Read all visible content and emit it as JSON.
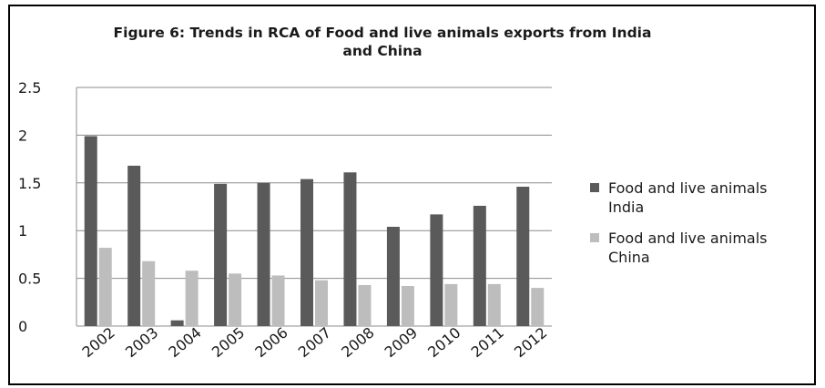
{
  "chart_data": {
    "type": "bar",
    "title_line1": "Figure 6: Trends in RCA of Food and live animals exports from India",
    "title_line2": "and China",
    "categories": [
      "2002",
      "2003",
      "2004",
      "2005",
      "2006",
      "2007",
      "2008",
      "2009",
      "2010",
      "2011",
      "2012"
    ],
    "series": [
      {
        "name": "Food and live animals India",
        "name_line1": "Food and live animals",
        "name_line2": "India",
        "color": "#5a5a5a",
        "values": [
          1.99,
          1.68,
          0.06,
          1.49,
          1.5,
          1.54,
          1.61,
          1.04,
          1.17,
          1.26,
          1.46
        ]
      },
      {
        "name": "Food and live animals China",
        "name_line1": "Food and live animals",
        "name_line2": "China",
        "color": "#bdbdbd",
        "values": [
          0.82,
          0.68,
          0.58,
          0.55,
          0.53,
          0.48,
          0.43,
          0.42,
          0.44,
          0.44,
          0.4
        ]
      }
    ],
    "ylim": [
      0,
      2.5
    ],
    "yticks": [
      "0",
      "0.5",
      "1",
      "1.5",
      "2",
      "2.5"
    ],
    "grid": true,
    "legend_position": "right"
  }
}
